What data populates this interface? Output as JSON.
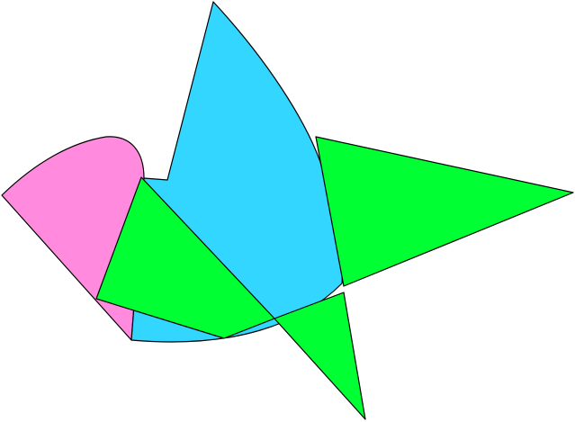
{
  "figure": {
    "shapes": [
      {
        "name": "pink-quarter-disc",
        "color": "#FF8ADE"
      },
      {
        "name": "cyan-teardrop",
        "color": "#33D6FF"
      },
      {
        "name": "green-triangle-left",
        "color": "#00FF33"
      },
      {
        "name": "green-triangle-right",
        "color": "#00FF33"
      },
      {
        "name": "green-triangle-bottom",
        "color": "#00FF33"
      }
    ],
    "stroke_color": "#000000"
  }
}
